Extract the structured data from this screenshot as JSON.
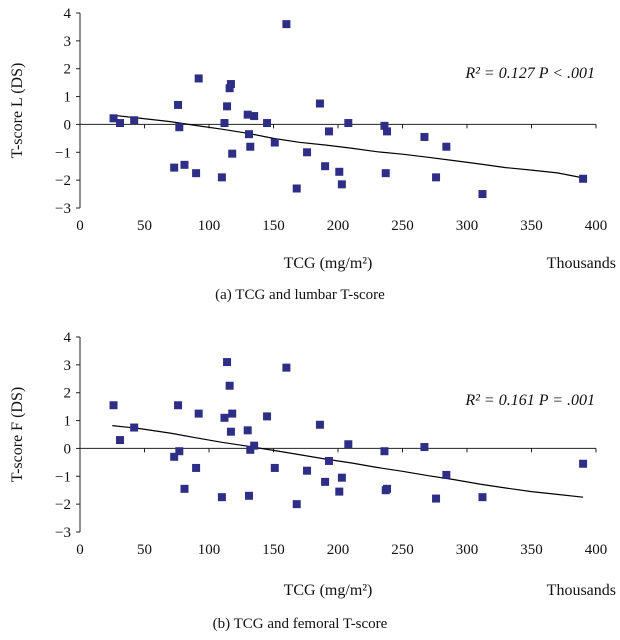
{
  "chart_data": [
    {
      "type": "scatter",
      "caption": "(a)  TCG and lumbar T-score",
      "ylabel": "T-score L (DS)",
      "xlabel": "TCG (mg/m²)",
      "x_units_label": "Thousands",
      "annotation": "R² = 0.127 P < .001",
      "xlim": [
        0,
        400
      ],
      "ylim": [
        -3,
        4
      ],
      "xticks": [
        0,
        50,
        100,
        150,
        200,
        250,
        300,
        350,
        400
      ],
      "yticks": [
        -3,
        -2,
        -1,
        0,
        1,
        2,
        3,
        4
      ],
      "marker_color": "#2e2e86",
      "trendline": [
        [
          25,
          0.33
        ],
        [
          45,
          0.23
        ],
        [
          70,
          0.1
        ],
        [
          90,
          -0.04
        ],
        [
          110,
          -0.17
        ],
        [
          130,
          -0.32
        ],
        [
          150,
          -0.5
        ],
        [
          170,
          -0.64
        ],
        [
          190,
          -0.74
        ],
        [
          210,
          -0.85
        ],
        [
          230,
          -0.98
        ],
        [
          250,
          -1.07
        ],
        [
          270,
          -1.18
        ],
        [
          290,
          -1.3
        ],
        [
          310,
          -1.42
        ],
        [
          330,
          -1.55
        ],
        [
          350,
          -1.64
        ],
        [
          370,
          -1.74
        ],
        [
          390,
          -1.92
        ]
      ],
      "points": [
        {
          "x": 26,
          "y": 0.22
        },
        {
          "x": 31,
          "y": 0.05
        },
        {
          "x": 42,
          "y": 0.15
        },
        {
          "x": 73,
          "y": -1.55
        },
        {
          "x": 76,
          "y": 0.7
        },
        {
          "x": 77,
          "y": -0.1
        },
        {
          "x": 81,
          "y": -1.45
        },
        {
          "x": 90,
          "y": -1.75
        },
        {
          "x": 92,
          "y": 1.65
        },
        {
          "x": 110,
          "y": -1.9
        },
        {
          "x": 112,
          "y": 0.05
        },
        {
          "x": 114,
          "y": 0.65
        },
        {
          "x": 116,
          "y": 1.3
        },
        {
          "x": 117,
          "y": 1.45
        },
        {
          "x": 118,
          "y": -1.05
        },
        {
          "x": 130,
          "y": 0.35
        },
        {
          "x": 131,
          "y": -0.35
        },
        {
          "x": 132,
          "y": -0.8
        },
        {
          "x": 135,
          "y": 0.3
        },
        {
          "x": 145,
          "y": 0.05
        },
        {
          "x": 151,
          "y": -0.65
        },
        {
          "x": 160,
          "y": 3.6
        },
        {
          "x": 168,
          "y": -2.3
        },
        {
          "x": 176,
          "y": -1.0
        },
        {
          "x": 186,
          "y": 0.75
        },
        {
          "x": 190,
          "y": -1.5
        },
        {
          "x": 193,
          "y": -0.25
        },
        {
          "x": 201,
          "y": -1.7
        },
        {
          "x": 203,
          "y": -2.15
        },
        {
          "x": 208,
          "y": 0.05
        },
        {
          "x": 236,
          "y": -0.05
        },
        {
          "x": 237,
          "y": -1.75
        },
        {
          "x": 238,
          "y": -0.25
        },
        {
          "x": 267,
          "y": -0.45
        },
        {
          "x": 276,
          "y": -1.9
        },
        {
          "x": 284,
          "y": -0.8
        },
        {
          "x": 312,
          "y": -2.5
        },
        {
          "x": 390,
          "y": -1.95
        }
      ]
    },
    {
      "type": "scatter",
      "caption": "(b)  TCG and femoral T-score",
      "ylabel": "T-score F (DS)",
      "xlabel": "TCG (mg/m²)",
      "x_units_label": "Thousands",
      "annotation": "R² = 0.161 P = .001",
      "xlim": [
        0,
        400
      ],
      "ylim": [
        -3,
        4
      ],
      "xticks": [
        0,
        50,
        100,
        150,
        200,
        250,
        300,
        350,
        400
      ],
      "yticks": [
        -3,
        -2,
        -1,
        0,
        1,
        2,
        3,
        4
      ],
      "marker_color": "#2e2e86",
      "trendline": [
        [
          25,
          0.82
        ],
        [
          45,
          0.72
        ],
        [
          70,
          0.55
        ],
        [
          90,
          0.38
        ],
        [
          110,
          0.22
        ],
        [
          130,
          0.08
        ],
        [
          150,
          -0.07
        ],
        [
          170,
          -0.22
        ],
        [
          190,
          -0.38
        ],
        [
          210,
          -0.52
        ],
        [
          230,
          -0.68
        ],
        [
          250,
          -0.82
        ],
        [
          270,
          -0.98
        ],
        [
          290,
          -1.12
        ],
        [
          310,
          -1.28
        ],
        [
          330,
          -1.42
        ],
        [
          350,
          -1.55
        ],
        [
          370,
          -1.65
        ],
        [
          390,
          -1.75
        ]
      ],
      "points": [
        {
          "x": 26,
          "y": 1.55
        },
        {
          "x": 31,
          "y": 0.3
        },
        {
          "x": 42,
          "y": 0.75
        },
        {
          "x": 73,
          "y": -0.3
        },
        {
          "x": 76,
          "y": 1.55
        },
        {
          "x": 77,
          "y": -0.1
        },
        {
          "x": 81,
          "y": -1.45
        },
        {
          "x": 90,
          "y": -0.7
        },
        {
          "x": 92,
          "y": 1.25
        },
        {
          "x": 110,
          "y": -1.75
        },
        {
          "x": 112,
          "y": 1.1
        },
        {
          "x": 114,
          "y": 3.1
        },
        {
          "x": 116,
          "y": 2.25
        },
        {
          "x": 117,
          "y": 0.6
        },
        {
          "x": 118,
          "y": 1.25
        },
        {
          "x": 130,
          "y": 0.65
        },
        {
          "x": 131,
          "y": -1.7
        },
        {
          "x": 132,
          "y": -0.05
        },
        {
          "x": 135,
          "y": 0.1
        },
        {
          "x": 145,
          "y": 1.15
        },
        {
          "x": 151,
          "y": -0.7
        },
        {
          "x": 160,
          "y": 2.9
        },
        {
          "x": 168,
          "y": -2.0
        },
        {
          "x": 176,
          "y": -0.8
        },
        {
          "x": 186,
          "y": 0.85
        },
        {
          "x": 190,
          "y": -1.2
        },
        {
          "x": 193,
          "y": -0.45
        },
        {
          "x": 201,
          "y": -1.55
        },
        {
          "x": 203,
          "y": -1.05
        },
        {
          "x": 208,
          "y": 0.15
        },
        {
          "x": 236,
          "y": -0.1
        },
        {
          "x": 237,
          "y": -1.5
        },
        {
          "x": 238,
          "y": -1.45
        },
        {
          "x": 267,
          "y": 0.05
        },
        {
          "x": 276,
          "y": -1.8
        },
        {
          "x": 284,
          "y": -0.95
        },
        {
          "x": 312,
          "y": -1.75
        },
        {
          "x": 390,
          "y": -0.55
        }
      ]
    }
  ]
}
